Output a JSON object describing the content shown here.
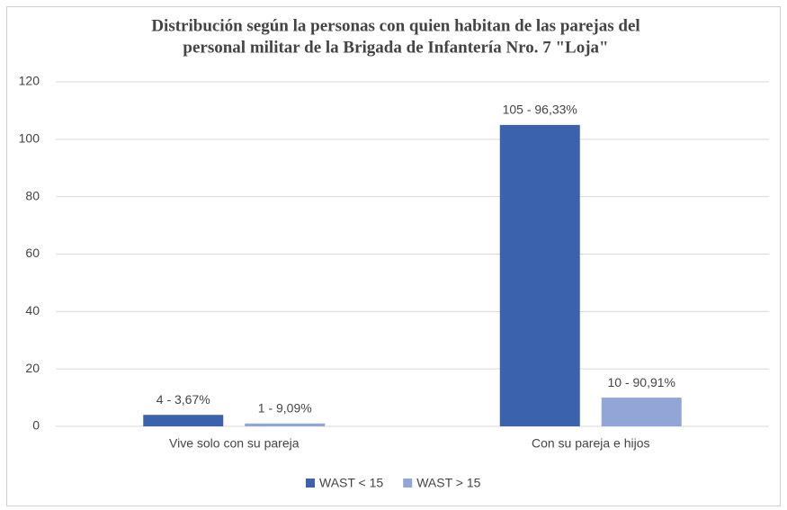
{
  "chart_data": {
    "type": "bar",
    "title": [
      "Distribución según la personas con quien habitan de las parejas del",
      "personal militar de la Brigada de Infantería Nro. 7 \"Loja\""
    ],
    "categories": [
      "Vive solo con su pareja",
      "Con su pareja e hijos"
    ],
    "series": [
      {
        "name": "WAST < 15",
        "color": "#3a62ad",
        "values": [
          4,
          105
        ],
        "value_labels": [
          "4 - 3,67%",
          "105 - 96,33%"
        ]
      },
      {
        "name": "WAST > 15",
        "color": "#91a6d6",
        "values": [
          1,
          10
        ],
        "value_labels": [
          "1 - 9,09%",
          "10 - 90,91%"
        ]
      }
    ],
    "ylim": [
      0,
      120
    ],
    "yticks": [
      0,
      20,
      40,
      60,
      80,
      100,
      120
    ],
    "grid": true,
    "legend": "bottom"
  }
}
